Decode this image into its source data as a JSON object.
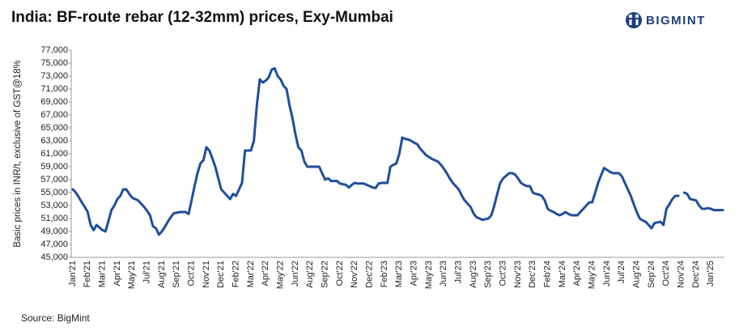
{
  "chart_data": {
    "type": "line",
    "title": "India: BF-route rebar (12-32mm) prices, Exy-Mumbai",
    "brand": "BIGMINT",
    "ylabel": "Basic prices in INR/t, exclusive of GST@18%",
    "source": "Source: BigMint",
    "color": "#1f4e9c",
    "ylim": [
      45000,
      77000
    ],
    "yticks": [
      {
        "value": 45000,
        "label": "45,000"
      },
      {
        "value": 47000,
        "label": "47,000"
      },
      {
        "value": 49000,
        "label": "49,000"
      },
      {
        "value": 51000,
        "label": "51,000"
      },
      {
        "value": 53000,
        "label": "53,000"
      },
      {
        "value": 55000,
        "label": "55,000"
      },
      {
        "value": 57000,
        "label": "57,000"
      },
      {
        "value": 59000,
        "label": "59,000"
      },
      {
        "value": 61000,
        "label": "61,000"
      },
      {
        "value": 63000,
        "label": "63,000"
      },
      {
        "value": 65000,
        "label": "65,000"
      },
      {
        "value": 67000,
        "label": "67,000"
      },
      {
        "value": 69000,
        "label": "69,000"
      },
      {
        "value": 71000,
        "label": "71,000"
      },
      {
        "value": 73000,
        "label": "73,000"
      },
      {
        "value": 75000,
        "label": "75,000"
      },
      {
        "value": 77000,
        "label": "77,000"
      }
    ],
    "categories": [
      "Jan'21",
      null,
      null,
      null,
      null,
      "Feb'21",
      null,
      null,
      null,
      null,
      "Mar'21",
      null,
      null,
      null,
      null,
      "Apr'21",
      null,
      null,
      null,
      null,
      "May'21",
      null,
      null,
      null,
      null,
      "Jul'21",
      null,
      null,
      null,
      null,
      "Aug'21",
      null,
      null,
      null,
      null,
      "Sep'21",
      null,
      null,
      null,
      null,
      "Oct'21",
      null,
      null,
      null,
      null,
      "Nov'21",
      null,
      null,
      null,
      null,
      "Dec'21",
      null,
      null,
      null,
      null,
      "Feb'22",
      null,
      null,
      null,
      null,
      "Mar'22",
      null,
      null,
      null,
      null,
      "Apr'22",
      null,
      null,
      null,
      null,
      "May'22",
      null,
      null,
      null,
      null,
      "Jun'22",
      null,
      null,
      null,
      null,
      "Aug'22",
      null,
      null,
      null,
      null,
      "Sep'22",
      null,
      null,
      null,
      null,
      "Oct'22",
      null,
      null,
      null,
      null,
      "Nov'22",
      null,
      null,
      null,
      null,
      "Dec'22",
      null,
      null,
      null,
      null,
      "Feb'23",
      null,
      null,
      null,
      null,
      "Mar'23",
      null,
      null,
      null,
      null,
      "Apr'23",
      null,
      null,
      null,
      null,
      "May'23",
      null,
      null,
      null,
      null,
      "Jun'23",
      null,
      null,
      null,
      null,
      "Jul'23",
      null,
      null,
      null,
      null,
      "Aug'23",
      null,
      null,
      null,
      null,
      "Sep'23",
      null,
      null,
      null,
      null,
      "Oct'23",
      null,
      null,
      null,
      null,
      "Nov'23",
      null,
      null,
      null,
      null,
      "Dec'23",
      null,
      null,
      null,
      null,
      "Feb'24",
      null,
      null,
      null,
      null,
      "Mar'24",
      null,
      null,
      null,
      null,
      "Apr'24",
      null,
      null,
      null,
      null,
      "May'24",
      null,
      null,
      null,
      null,
      "Jun'24",
      null,
      null,
      null,
      null,
      "Jul'24",
      null,
      null,
      null,
      null,
      "Aug'24",
      null,
      null,
      null,
      null,
      "Sep'24",
      null,
      null,
      null,
      null,
      "Oct'24",
      null,
      null,
      null,
      null,
      "Nov'24",
      null,
      null,
      null,
      null,
      "Dec'24",
      null,
      null,
      null,
      null,
      "Jan'25",
      null,
      null,
      null,
      null
    ],
    "values": [
      55500,
      55000,
      54300,
      53500,
      52800,
      52000,
      50000,
      49200,
      50000,
      49600,
      49200,
      49000,
      50600,
      52300,
      53000,
      54000,
      54500,
      55500,
      55500,
      54800,
      54200,
      54000,
      53800,
      53300,
      52800,
      52200,
      51500,
      49800,
      49500,
      48500,
      49000,
      49700,
      50500,
      51200,
      51800,
      51900,
      52000,
      52000,
      52000,
      51700,
      53800,
      56000,
      58000,
      59500,
      60000,
      62000,
      61500,
      60300,
      59000,
      57200,
      55500,
      55000,
      54500,
      54000,
      54800,
      54500,
      55500,
      56500,
      61500,
      61500,
      61500,
      63000,
      68500,
      72500,
      72000,
      72300,
      72800,
      74000,
      74200,
      73000,
      72500,
      71500,
      71000,
      68500,
      66500,
      64000,
      62000,
      61500,
      59800,
      59000,
      59000,
      59000,
      59000,
      59000,
      58000,
      57000,
      57200,
      56800,
      56800,
      56800,
      56400,
      56300,
      56200,
      55800,
      56200,
      56500,
      56400,
      56400,
      56400,
      56200,
      56000,
      55800,
      55700,
      56400,
      56500,
      56500,
      56500,
      59000,
      59300,
      59500,
      61000,
      63500,
      63300,
      63200,
      63000,
      62700,
      62500,
      61800,
      61300,
      60800,
      60500,
      60200,
      60000,
      59800,
      59300,
      58700,
      58000,
      57200,
      56500,
      56000,
      55500,
      54600,
      53800,
      53300,
      52800,
      51800,
      51200,
      51000,
      50800,
      50900,
      51000,
      51500,
      53000,
      54800,
      56500,
      57200,
      57600,
      58000,
      58000,
      57800,
      57200,
      56500,
      56200,
      56000,
      56000,
      55000,
      54800,
      54700,
      54500,
      53800,
      52500,
      52200,
      52000,
      51700,
      51500,
      51700,
      52000,
      51700,
      51500,
      51500,
      51500,
      52000,
      52500,
      53000,
      53500,
      53500,
      55000,
      56500,
      57700,
      58800,
      58500,
      58200,
      58000,
      58000,
      58000,
      57500,
      56500,
      55500,
      54500,
      53200,
      52000,
      51000,
      50700,
      50500,
      50000,
      49500,
      50300,
      50400,
      50500,
      50000,
      52500,
      53200,
      54000,
      54500,
      54500,
      null,
      55000,
      54800,
      54000,
      53900,
      53800,
      53000,
      52500,
      52500,
      52600,
      52500,
      52300,
      52300,
      52300,
      52300
    ]
  }
}
